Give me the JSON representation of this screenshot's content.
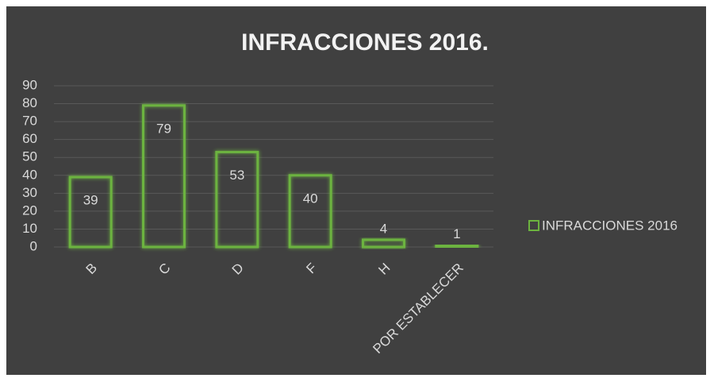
{
  "chart_data": {
    "type": "bar",
    "title": "INFRACCIONES 2016.",
    "categories": [
      "B",
      "C",
      "D",
      "F",
      "H",
      "POR ESTABLECER"
    ],
    "series": [
      {
        "name": "INFRACCIONES 2016",
        "color": "#6cb33f",
        "values": [
          39,
          79,
          53,
          40,
          4,
          1
        ]
      }
    ],
    "ylim": [
      0,
      90
    ],
    "yticks": [
      0,
      10,
      20,
      30,
      40,
      50,
      60,
      70,
      80,
      90
    ],
    "grid": true,
    "legend": "right"
  }
}
